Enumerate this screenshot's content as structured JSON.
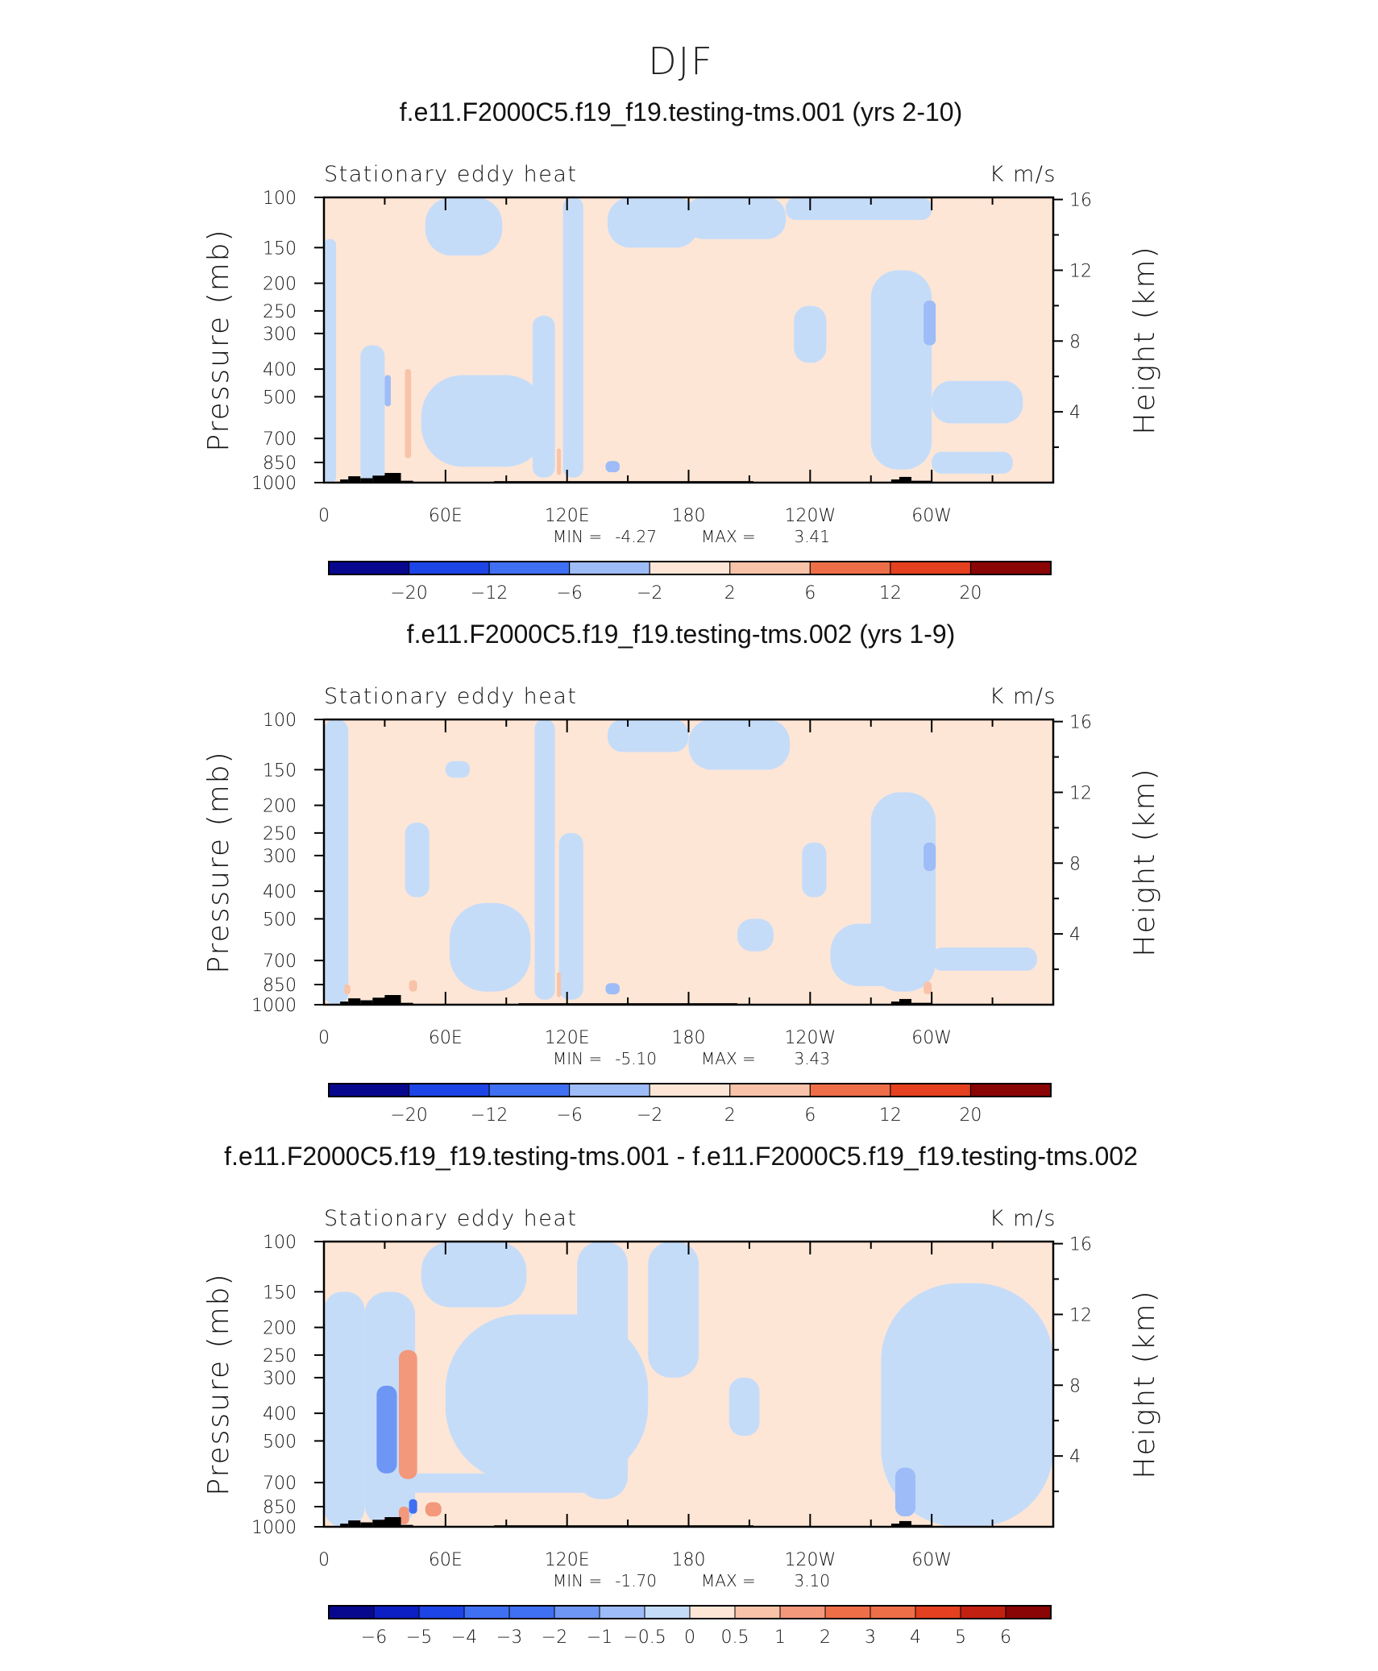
{
  "figure_title": "DJF",
  "colors": {
    "scale": [
      "#08088f",
      "#0c1fc4",
      "#1d44e6",
      "#3f6ff3",
      "#6e96f4",
      "#9ebcf7",
      "#c5dcf9",
      "#fde6d6",
      "#f8c3a9",
      "#f3987a",
      "#ee6e48",
      "#e5401f",
      "#c22010",
      "#8a0505"
    ],
    "land": "#000000",
    "axis": "#000000"
  },
  "chart_data": [
    {
      "type": "contour",
      "title": "f.e11.F2000C5.f19_f19.testing-tms.001 (yrs 2-10)",
      "left_label": "Stationary eddy heat",
      "right_label": "K m/s",
      "xlabel": "",
      "ylabel": "Pressure (mb)",
      "ylabel_right": "Height (km)",
      "x_ticks": [
        "0",
        "60E",
        "120E",
        "180",
        "120W",
        "60W"
      ],
      "y_ticks": [
        "100",
        "150",
        "200",
        "250",
        "300",
        "400",
        "500",
        "700",
        "850",
        "1000"
      ],
      "y_ticks_right": [
        "16",
        "12",
        "8",
        "4"
      ],
      "xlim": [
        0,
        360
      ],
      "ylim": [
        1000,
        100
      ],
      "stats": {
        "min_label": "MIN =",
        "min": "-4.27",
        "max_label": "MAX =",
        "max": "3.41"
      },
      "colorbar_labels": [
        "−20",
        "−12",
        "−6",
        "−2",
        "2",
        "6",
        "12",
        "20"
      ],
      "field_regions": [
        {
          "lon": [
            0,
            360
          ],
          "p": [
            100,
            1000
          ],
          "level": 7
        },
        {
          "lon": [
            0,
            6
          ],
          "p": [
            140,
            1000
          ],
          "level": 6
        },
        {
          "lon": [
            50,
            88
          ],
          "p": [
            100,
            160
          ],
          "level": 6
        },
        {
          "lon": [
            18,
            30
          ],
          "p": [
            330,
            1000
          ],
          "level": 6
        },
        {
          "lon": [
            48,
            110
          ],
          "p": [
            420,
            880
          ],
          "level": 6
        },
        {
          "lon": [
            103,
            114
          ],
          "p": [
            260,
            960
          ],
          "level": 6
        },
        {
          "lon": [
            118,
            128
          ],
          "p": [
            100,
            960
          ],
          "level": 6
        },
        {
          "lon": [
            140,
            185
          ],
          "p": [
            100,
            150
          ],
          "level": 6
        },
        {
          "lon": [
            178,
            228
          ],
          "p": [
            100,
            140
          ],
          "level": 6
        },
        {
          "lon": [
            228,
            300
          ],
          "p": [
            100,
            120
          ],
          "level": 6
        },
        {
          "lon": [
            232,
            248
          ],
          "p": [
            240,
            380
          ],
          "level": 6
        },
        {
          "lon": [
            270,
            300
          ],
          "p": [
            180,
            900
          ],
          "level": 6
        },
        {
          "lon": [
            300,
            345
          ],
          "p": [
            440,
            620
          ],
          "level": 6
        },
        {
          "lon": [
            300,
            340
          ],
          "p": [
            780,
            930
          ],
          "level": 6
        },
        {
          "lon": [
            30,
            33
          ],
          "p": [
            420,
            540
          ],
          "level": 5
        },
        {
          "lon": [
            296,
            302
          ],
          "p": [
            230,
            330
          ],
          "level": 5
        },
        {
          "lon": [
            139,
            146
          ],
          "p": [
            840,
            920
          ],
          "level": 5
        },
        {
          "lon": [
            40,
            43
          ],
          "p": [
            400,
            820
          ],
          "level": 8
        },
        {
          "lon": [
            115,
            117
          ],
          "p": [
            760,
            940
          ],
          "level": 8
        }
      ],
      "land_segments": [
        {
          "lon": [
            8,
            12
          ],
          "top": 975
        },
        {
          "lon": [
            12,
            18
          ],
          "top": 950
        },
        {
          "lon": [
            18,
            24
          ],
          "top": 965
        },
        {
          "lon": [
            24,
            30
          ],
          "top": 945
        },
        {
          "lon": [
            30,
            38
          ],
          "top": 925
        },
        {
          "lon": [
            38,
            44
          ],
          "top": 985
        },
        {
          "lon": [
            84,
            212
          ],
          "top": 988
        },
        {
          "lon": [
            280,
            284
          ],
          "top": 975
        },
        {
          "lon": [
            284,
            290
          ],
          "top": 955
        },
        {
          "lon": [
            290,
            300
          ],
          "top": 985
        }
      ]
    },
    {
      "type": "contour",
      "title": "f.e11.F2000C5.f19_f19.testing-tms.002 (yrs 1-9)",
      "left_label": "Stationary eddy heat",
      "right_label": "K m/s",
      "xlabel": "",
      "ylabel": "Pressure (mb)",
      "ylabel_right": "Height (km)",
      "x_ticks": [
        "0",
        "60E",
        "120E",
        "180",
        "120W",
        "60W"
      ],
      "y_ticks": [
        "100",
        "150",
        "200",
        "250",
        "300",
        "400",
        "500",
        "700",
        "850",
        "1000"
      ],
      "y_ticks_right": [
        "16",
        "12",
        "8",
        "4"
      ],
      "xlim": [
        0,
        360
      ],
      "ylim": [
        1000,
        100
      ],
      "stats": {
        "min_label": "MIN =",
        "min": "-5.10",
        "max_label": "MAX =",
        "max": "3.43"
      },
      "colorbar_labels": [
        "−20",
        "−12",
        "−6",
        "−2",
        "2",
        "6",
        "12",
        "20"
      ],
      "field_regions": [
        {
          "lon": [
            0,
            360
          ],
          "p": [
            100,
            1000
          ],
          "level": 7
        },
        {
          "lon": [
            0,
            12
          ],
          "p": [
            100,
            1000
          ],
          "level": 6
        },
        {
          "lon": [
            60,
            72
          ],
          "p": [
            140,
            160
          ],
          "level": 6
        },
        {
          "lon": [
            40,
            52
          ],
          "p": [
            230,
            420
          ],
          "level": 6
        },
        {
          "lon": [
            62,
            102
          ],
          "p": [
            440,
            900
          ],
          "level": 6
        },
        {
          "lon": [
            104,
            114
          ],
          "p": [
            100,
            960
          ],
          "level": 6
        },
        {
          "lon": [
            116,
            128
          ],
          "p": [
            250,
            960
          ],
          "level": 6
        },
        {
          "lon": [
            140,
            180
          ],
          "p": [
            100,
            130
          ],
          "level": 6
        },
        {
          "lon": [
            180,
            230
          ],
          "p": [
            100,
            150
          ],
          "level": 6
        },
        {
          "lon": [
            236,
            248
          ],
          "p": [
            270,
            420
          ],
          "level": 6
        },
        {
          "lon": [
            204,
            222
          ],
          "p": [
            500,
            650
          ],
          "level": 6
        },
        {
          "lon": [
            250,
            300
          ],
          "p": [
            520,
            860
          ],
          "level": 6
        },
        {
          "lon": [
            270,
            302
          ],
          "p": [
            180,
            900
          ],
          "level": 6
        },
        {
          "lon": [
            300,
            352
          ],
          "p": [
            630,
            760
          ],
          "level": 6
        },
        {
          "lon": [
            296,
            302
          ],
          "p": [
            270,
            340
          ],
          "level": 5
        },
        {
          "lon": [
            139,
            146
          ],
          "p": [
            840,
            920
          ],
          "level": 5
        },
        {
          "lon": [
            10,
            13
          ],
          "p": [
            850,
            920
          ],
          "level": 8
        },
        {
          "lon": [
            42,
            46
          ],
          "p": [
            820,
            900
          ],
          "level": 8
        },
        {
          "lon": [
            115,
            117
          ],
          "p": [
            770,
            940
          ],
          "level": 8
        },
        {
          "lon": [
            296,
            300
          ],
          "p": [
            830,
            920
          ],
          "level": 8
        }
      ],
      "land_segments": [
        {
          "lon": [
            8,
            12
          ],
          "top": 975
        },
        {
          "lon": [
            12,
            18
          ],
          "top": 950
        },
        {
          "lon": [
            18,
            24
          ],
          "top": 965
        },
        {
          "lon": [
            24,
            30
          ],
          "top": 945
        },
        {
          "lon": [
            30,
            38
          ],
          "top": 925
        },
        {
          "lon": [
            38,
            44
          ],
          "top": 985
        },
        {
          "lon": [
            96,
            204
          ],
          "top": 988
        },
        {
          "lon": [
            280,
            284
          ],
          "top": 975
        },
        {
          "lon": [
            284,
            290
          ],
          "top": 955
        },
        {
          "lon": [
            290,
            300
          ],
          "top": 985
        }
      ]
    },
    {
      "type": "contour",
      "title": "f.e11.F2000C5.f19_f19.testing-tms.001 - f.e11.F2000C5.f19_f19.testing-tms.002",
      "left_label": "Stationary eddy heat",
      "right_label": "K m/s",
      "xlabel": "",
      "ylabel": "Pressure (mb)",
      "ylabel_right": "Height (km)",
      "x_ticks": [
        "0",
        "60E",
        "120E",
        "180",
        "120W",
        "60W"
      ],
      "y_ticks": [
        "100",
        "150",
        "200",
        "250",
        "300",
        "400",
        "500",
        "700",
        "850",
        "1000"
      ],
      "y_ticks_right": [
        "16",
        "12",
        "8",
        "4"
      ],
      "xlim": [
        0,
        360
      ],
      "ylim": [
        1000,
        100
      ],
      "stats": {
        "min_label": "MIN =",
        "min": "-1.70",
        "max_label": "MAX =",
        "max": "3.10"
      },
      "colorbar_labels": [
        "−6",
        "−5",
        "−4",
        "−3",
        "−2",
        "−1",
        "−0.5",
        "0",
        "0.5",
        "1",
        "2",
        "3",
        "4",
        "5",
        "6"
      ],
      "field_regions": [
        {
          "lon": [
            0,
            360
          ],
          "p": [
            100,
            1000
          ],
          "level": 7
        },
        {
          "lon": [
            0,
            20
          ],
          "p": [
            150,
            1000
          ],
          "level": 6
        },
        {
          "lon": [
            48,
            100
          ],
          "p": [
            100,
            170
          ],
          "level": 6
        },
        {
          "lon": [
            60,
            160
          ],
          "p": [
            180,
            700
          ],
          "level": 6
        },
        {
          "lon": [
            20,
            45
          ],
          "p": [
            150,
            1000
          ],
          "level": 6
        },
        {
          "lon": [
            125,
            150
          ],
          "p": [
            100,
            800
          ],
          "level": 6
        },
        {
          "lon": [
            160,
            185
          ],
          "p": [
            100,
            300
          ],
          "level": 6
        },
        {
          "lon": [
            200,
            215
          ],
          "p": [
            300,
            480
          ],
          "level": 6
        },
        {
          "lon": [
            275,
            360
          ],
          "p": [
            140,
            1000
          ],
          "level": 6
        },
        {
          "lon": [
            40,
            140
          ],
          "p": [
            650,
            760
          ],
          "level": 6
        },
        {
          "lon": [
            26,
            36
          ],
          "p": [
            320,
            650
          ],
          "level": 4
        },
        {
          "lon": [
            282,
            292
          ],
          "p": [
            620,
            920
          ],
          "level": 5
        },
        {
          "lon": [
            37,
            46
          ],
          "p": [
            240,
            680
          ],
          "level": 9
        },
        {
          "lon": [
            50,
            58
          ],
          "p": [
            820,
            920
          ],
          "level": 9
        },
        {
          "lon": [
            37,
            42
          ],
          "p": [
            850,
            980
          ],
          "level": 9
        },
        {
          "lon": [
            42,
            46
          ],
          "p": [
            800,
            900
          ],
          "level": 3
        }
      ],
      "land_segments": [
        {
          "lon": [
            8,
            12
          ],
          "top": 975
        },
        {
          "lon": [
            12,
            18
          ],
          "top": 950
        },
        {
          "lon": [
            18,
            24
          ],
          "top": 965
        },
        {
          "lon": [
            24,
            30
          ],
          "top": 945
        },
        {
          "lon": [
            30,
            38
          ],
          "top": 925
        },
        {
          "lon": [
            38,
            44
          ],
          "top": 985
        },
        {
          "lon": [
            84,
            212
          ],
          "top": 988
        },
        {
          "lon": [
            280,
            284
          ],
          "top": 975
        },
        {
          "lon": [
            284,
            290
          ],
          "top": 955
        },
        {
          "lon": [
            290,
            300
          ],
          "top": 985
        }
      ]
    }
  ]
}
